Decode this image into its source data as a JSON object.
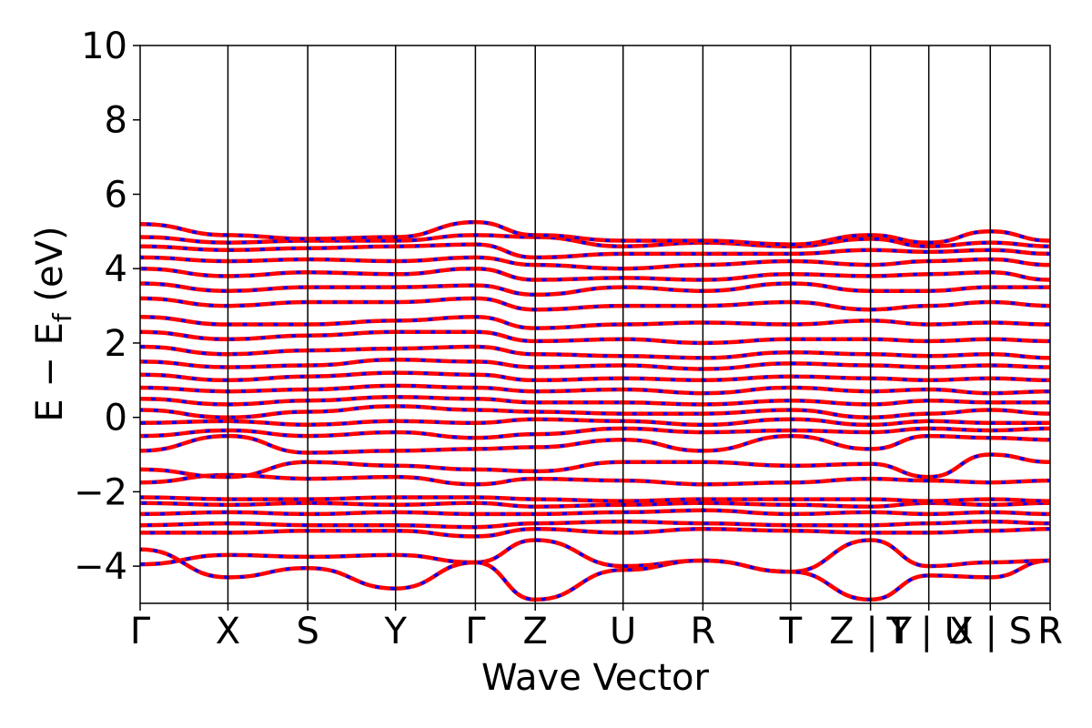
{
  "chart_data": {
    "type": "line",
    "title": "",
    "xlabel": "Wave Vector",
    "ylabel_main": "E − E",
    "ylabel_sub": "f",
    "ylabel_unit": " (eV)",
    "ylim": [
      -5,
      10
    ],
    "yticks": [
      -4,
      -2,
      0,
      2,
      4,
      6,
      8,
      10
    ],
    "ytick_labels": [
      "−4",
      "−2",
      "0",
      "2",
      "4",
      "6",
      "8",
      "10"
    ],
    "xlim": [
      0,
      11.4
    ],
    "kpoint_positions": [
      0,
      1.1,
      2.1,
      3.2,
      4.2,
      4.95,
      6.05,
      7.05,
      8.15,
      9.15,
      9.88,
      10.65,
      11.4
    ],
    "kpoint_labels": [
      "Γ",
      "X",
      "S",
      "Y",
      "Γ",
      "Z",
      "U",
      "R",
      "T",
      "Z | Y",
      "T | U",
      "X | S",
      "R"
    ],
    "grid": false,
    "legend": "none",
    "colors": {
      "spin_up": "#ff0000",
      "spin_down": "#0000ff",
      "kpoint_line": "#000000"
    },
    "series": [
      {
        "values": [
          -3.95,
          -3.7,
          -3.75,
          -3.7,
          -3.9,
          -3.3,
          -4.0,
          -3.85,
          -4.15,
          -3.3,
          -4.0,
          -3.9,
          -3.85
        ]
      },
      {
        "values": [
          -3.55,
          -4.3,
          -4.05,
          -4.6,
          -3.9,
          -4.9,
          -4.1,
          -3.85,
          -4.15,
          -4.9,
          -4.25,
          -4.3,
          -3.85
        ]
      },
      {
        "values": [
          -3.1,
          -3.1,
          -3.05,
          -3.05,
          -3.2,
          -3.0,
          -3.1,
          -3.0,
          -3.05,
          -3.1,
          -3.1,
          -3.05,
          -3.0
        ]
      },
      {
        "values": [
          -2.9,
          -2.85,
          -2.9,
          -2.9,
          -2.95,
          -2.85,
          -2.8,
          -2.85,
          -2.9,
          -2.9,
          -2.85,
          -2.8,
          -2.85
        ]
      },
      {
        "values": [
          -2.6,
          -2.55,
          -2.6,
          -2.55,
          -2.6,
          -2.6,
          -2.55,
          -2.5,
          -2.6,
          -2.55,
          -2.6,
          -2.55,
          -2.6
        ]
      },
      {
        "values": [
          -2.3,
          -2.35,
          -2.3,
          -2.35,
          -2.3,
          -2.4,
          -2.35,
          -2.3,
          -2.35,
          -2.4,
          -2.3,
          -2.35,
          -2.3
        ]
      },
      {
        "values": [
          -2.15,
          -2.2,
          -2.2,
          -2.15,
          -2.15,
          -2.2,
          -2.25,
          -2.2,
          -2.2,
          -2.2,
          -2.25,
          -2.2,
          -2.25
        ]
      },
      {
        "values": [
          -1.75,
          -1.55,
          -1.65,
          -1.6,
          -1.8,
          -1.65,
          -1.7,
          -1.8,
          -1.75,
          -1.65,
          -1.7,
          -1.75,
          -1.7
        ]
      },
      {
        "values": [
          -1.4,
          -1.6,
          -1.2,
          -1.3,
          -1.4,
          -1.45,
          -1.2,
          -1.2,
          -1.3,
          -1.25,
          -1.6,
          -1.0,
          -1.2
        ]
      },
      {
        "values": [
          -0.9,
          -0.5,
          -0.95,
          -0.9,
          -0.85,
          -0.8,
          -0.6,
          -0.9,
          -0.5,
          -0.85,
          -0.5,
          -0.55,
          -0.6
        ]
      },
      {
        "values": [
          -0.5,
          -0.35,
          -0.5,
          -0.4,
          -0.55,
          -0.45,
          -0.3,
          -0.4,
          -0.35,
          -0.4,
          -0.3,
          -0.35,
          -0.3
        ]
      },
      {
        "values": [
          -0.15,
          -0.1,
          -0.2,
          -0.1,
          -0.15,
          -0.05,
          -0.1,
          -0.2,
          -0.05,
          -0.2,
          -0.1,
          -0.15,
          -0.15
        ]
      },
      {
        "values": [
          0.2,
          0.0,
          0.15,
          0.3,
          0.2,
          0.15,
          0.1,
          0.1,
          0.2,
          0.0,
          0.1,
          0.2,
          0.1
        ]
      },
      {
        "values": [
          0.5,
          0.35,
          0.45,
          0.55,
          0.5,
          0.4,
          0.4,
          0.35,
          0.45,
          0.35,
          0.45,
          0.4,
          0.4
        ]
      },
      {
        "values": [
          0.8,
          0.7,
          0.75,
          0.85,
          0.8,
          0.7,
          0.75,
          0.65,
          0.8,
          0.7,
          0.75,
          0.65,
          0.7
        ]
      },
      {
        "values": [
          1.15,
          1.0,
          1.1,
          1.2,
          1.15,
          1.0,
          1.05,
          1.0,
          1.1,
          1.05,
          1.0,
          1.05,
          1.0
        ]
      },
      {
        "values": [
          1.5,
          1.35,
          1.4,
          1.55,
          1.5,
          1.35,
          1.4,
          1.3,
          1.45,
          1.4,
          1.35,
          1.4,
          1.35
        ]
      },
      {
        "values": [
          1.9,
          1.7,
          1.8,
          1.85,
          1.9,
          1.7,
          1.65,
          1.6,
          1.75,
          1.7,
          1.65,
          1.7,
          1.6
        ]
      },
      {
        "values": [
          2.3,
          2.1,
          2.2,
          2.3,
          2.3,
          2.05,
          2.1,
          2.0,
          2.1,
          2.1,
          2.05,
          2.1,
          2.05
        ]
      },
      {
        "values": [
          2.7,
          2.5,
          2.5,
          2.6,
          2.7,
          2.4,
          2.5,
          2.55,
          2.5,
          2.6,
          2.5,
          2.55,
          2.5
        ]
      },
      {
        "values": [
          3.2,
          3.0,
          3.1,
          3.1,
          3.2,
          2.9,
          3.0,
          3.0,
          3.1,
          2.9,
          3.0,
          3.1,
          3.0
        ]
      },
      {
        "values": [
          3.6,
          3.4,
          3.5,
          3.5,
          3.55,
          3.3,
          3.5,
          3.4,
          3.6,
          3.4,
          3.4,
          3.5,
          3.5
        ]
      },
      {
        "values": [
          4.0,
          3.8,
          3.9,
          3.85,
          4.0,
          3.7,
          3.75,
          3.7,
          3.85,
          3.8,
          3.85,
          3.9,
          3.7
        ]
      },
      {
        "values": [
          4.3,
          4.2,
          4.25,
          4.2,
          4.3,
          4.1,
          4.0,
          4.1,
          4.2,
          4.1,
          4.2,
          4.25,
          4.1
        ]
      },
      {
        "values": [
          4.6,
          4.5,
          4.55,
          4.6,
          4.65,
          4.3,
          4.4,
          4.4,
          4.4,
          4.5,
          4.45,
          4.5,
          4.4
        ]
      },
      {
        "values": [
          4.85,
          4.7,
          4.75,
          4.75,
          4.9,
          4.85,
          4.6,
          4.7,
          4.6,
          4.8,
          4.6,
          4.7,
          4.6
        ]
      },
      {
        "values": [
          5.2,
          4.9,
          4.8,
          4.85,
          5.25,
          4.9,
          4.75,
          4.75,
          4.65,
          4.9,
          4.7,
          5.0,
          4.75
        ]
      }
    ]
  }
}
